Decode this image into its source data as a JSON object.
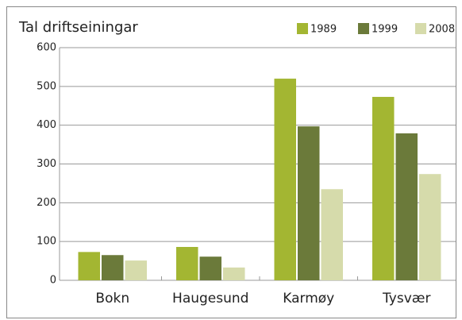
{
  "chart_data": {
    "type": "bar",
    "title": "Tal driftseiningar",
    "categories": [
      "Bokn",
      "Haugesund",
      "Karmøy",
      "Tysvær"
    ],
    "series": [
      {
        "name": "1989",
        "color": "#a3b632",
        "values": [
          73,
          86,
          520,
          473
        ]
      },
      {
        "name": "1999",
        "color": "#6b7a3a",
        "values": [
          65,
          61,
          397,
          379
        ]
      },
      {
        "name": "2008",
        "color": "#d6dbab",
        "values": [
          51,
          33,
          235,
          274
        ]
      }
    ],
    "ylim": [
      0,
      600
    ],
    "yticks": [
      0,
      100,
      200,
      300,
      400,
      500,
      600
    ],
    "grid": true,
    "legend": "top-right"
  }
}
